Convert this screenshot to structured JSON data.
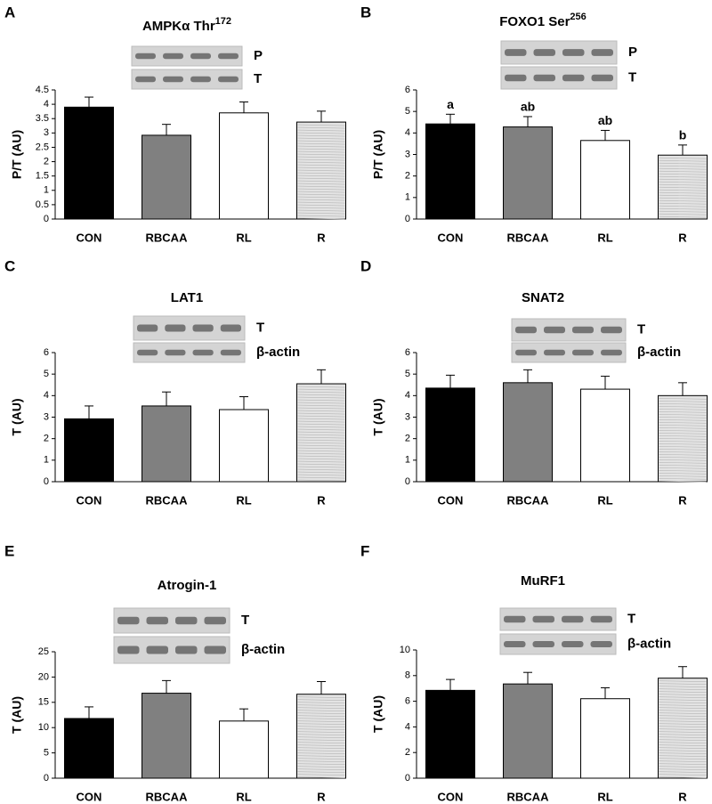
{
  "chart_data": [
    {
      "type": "bar",
      "panel": "A",
      "title": "AMPKα Thr",
      "title_superscript": "172",
      "ylabel": "P/T (AU)",
      "blot_labels": [
        "P",
        "T"
      ],
      "categories": [
        "CON",
        "RBCAA",
        "RL",
        "R"
      ],
      "values": [
        3.9,
        2.92,
        3.7,
        3.38
      ],
      "errors": [
        0.35,
        0.38,
        0.38,
        0.38
      ],
      "colors": [
        "#000000",
        "#808080",
        "#ffffff",
        "#e3e3e3"
      ],
      "ylim": [
        0,
        4.5
      ],
      "yticks": [
        0,
        0.5,
        1,
        1.5,
        2,
        2.5,
        3,
        3.5,
        4,
        4.5
      ]
    },
    {
      "type": "bar",
      "panel": "B",
      "title": "FOXO1 Ser",
      "title_superscript": "256",
      "ylabel": "P/T (AU)",
      "blot_labels": [
        "P",
        "T"
      ],
      "categories": [
        "CON",
        "RBCAA",
        "RL",
        "R"
      ],
      "values": [
        4.42,
        4.28,
        3.65,
        2.97
      ],
      "errors": [
        0.45,
        0.48,
        0.47,
        0.47
      ],
      "significance": [
        "a",
        "ab",
        "ab",
        "b"
      ],
      "colors": [
        "#000000",
        "#808080",
        "#ffffff",
        "#e3e3e3"
      ],
      "ylim": [
        0,
        6
      ],
      "yticks": [
        0,
        1,
        2,
        3,
        4,
        5,
        6
      ]
    },
    {
      "type": "bar",
      "panel": "C",
      "title": "LAT1",
      "ylabel": "T (AU)",
      "blot_labels": [
        "T",
        "β-actin"
      ],
      "categories": [
        "CON",
        "RBCAA",
        "RL",
        "R"
      ],
      "values": [
        2.92,
        3.52,
        3.35,
        4.55
      ],
      "errors": [
        0.6,
        0.65,
        0.6,
        0.65
      ],
      "colors": [
        "#000000",
        "#808080",
        "#ffffff",
        "#e3e3e3"
      ],
      "ylim": [
        0,
        6
      ],
      "yticks": [
        0,
        1,
        2,
        3,
        4,
        5,
        6
      ]
    },
    {
      "type": "bar",
      "panel": "D",
      "title": "SNAT2",
      "ylabel": "T (AU)",
      "blot_labels": [
        "T",
        "β-actin"
      ],
      "categories": [
        "CON",
        "RBCAA",
        "RL",
        "R"
      ],
      "values": [
        4.35,
        4.6,
        4.3,
        4.0
      ],
      "errors": [
        0.6,
        0.6,
        0.6,
        0.6
      ],
      "colors": [
        "#000000",
        "#808080",
        "#ffffff",
        "#e3e3e3"
      ],
      "ylim": [
        0,
        6
      ],
      "yticks": [
        0,
        1,
        2,
        3,
        4,
        5,
        6
      ]
    },
    {
      "type": "bar",
      "panel": "E",
      "title": "Atrogin-1",
      "ylabel": "T (AU)",
      "blot_labels": [
        "T",
        "β-actin"
      ],
      "categories": [
        "CON",
        "RBCAA",
        "RL",
        "R"
      ],
      "values": [
        11.8,
        16.8,
        11.3,
        16.6
      ],
      "errors": [
        2.3,
        2.5,
        2.4,
        2.5
      ],
      "colors": [
        "#000000",
        "#808080",
        "#ffffff",
        "#e3e3e3"
      ],
      "ylim": [
        0,
        25
      ],
      "yticks": [
        0,
        5,
        10,
        15,
        20,
        25
      ]
    },
    {
      "type": "bar",
      "panel": "F",
      "title": "MuRF1",
      "ylabel": "T (AU)",
      "blot_labels": [
        "T",
        "β-actin"
      ],
      "categories": [
        "CON",
        "RBCAA",
        "RL",
        "R"
      ],
      "values": [
        6.85,
        7.35,
        6.2,
        7.8
      ],
      "errors": [
        0.85,
        0.9,
        0.85,
        0.9
      ],
      "colors": [
        "#000000",
        "#808080",
        "#ffffff",
        "#e3e3e3"
      ],
      "ylim": [
        0,
        10
      ],
      "yticks": [
        0,
        2,
        4,
        6,
        8,
        10
      ]
    }
  ]
}
